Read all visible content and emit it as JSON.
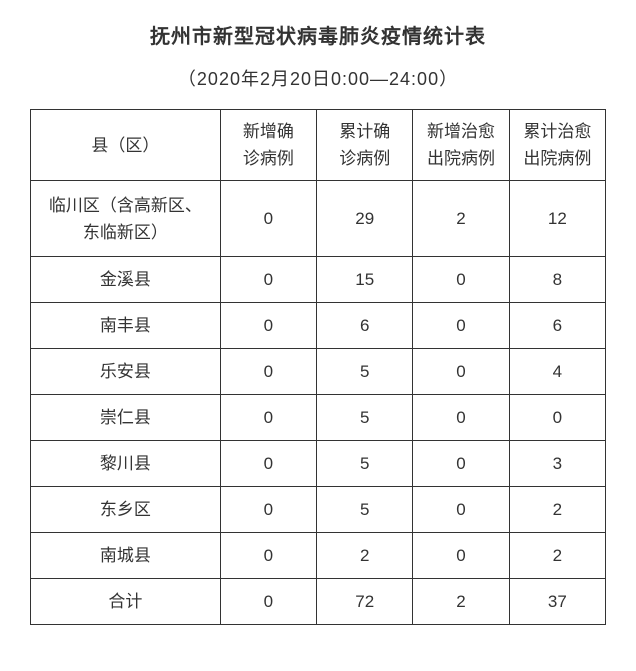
{
  "title": "抚州市新型冠状病毒肺炎疫情统计表",
  "subtitle": "（2020年2月20日0:00—24:00）",
  "columns": {
    "region": "县（区）",
    "new_confirmed_l1": "新增确",
    "new_confirmed_l2": "诊病例",
    "total_confirmed_l1": "累计确",
    "total_confirmed_l2": "诊病例",
    "new_cured_l1": "新增治愈",
    "new_cured_l2": "出院病例",
    "total_cured_l1": "累计治愈",
    "total_cured_l2": "出院病例"
  },
  "rows": [
    {
      "region_l1": "临川区（含高新区、",
      "region_l2": "东临新区）",
      "new_confirmed": "0",
      "total_confirmed": "29",
      "new_cured": "2",
      "total_cured": "12",
      "tall": true
    },
    {
      "region_l1": "金溪县",
      "region_l2": "",
      "new_confirmed": "0",
      "total_confirmed": "15",
      "new_cured": "0",
      "total_cured": "8",
      "tall": false
    },
    {
      "region_l1": "南丰县",
      "region_l2": "",
      "new_confirmed": "0",
      "total_confirmed": "6",
      "new_cured": "0",
      "total_cured": "6",
      "tall": false
    },
    {
      "region_l1": "乐安县",
      "region_l2": "",
      "new_confirmed": "0",
      "total_confirmed": "5",
      "new_cured": "0",
      "total_cured": "4",
      "tall": false
    },
    {
      "region_l1": "崇仁县",
      "region_l2": "",
      "new_confirmed": "0",
      "total_confirmed": "5",
      "new_cured": "0",
      "total_cured": "0",
      "tall": false
    },
    {
      "region_l1": "黎川县",
      "region_l2": "",
      "new_confirmed": "0",
      "total_confirmed": "5",
      "new_cured": "0",
      "total_cured": "3",
      "tall": false
    },
    {
      "region_l1": "东乡区",
      "region_l2": "",
      "new_confirmed": "0",
      "total_confirmed": "5",
      "new_cured": "0",
      "total_cured": "2",
      "tall": false
    },
    {
      "region_l1": "南城县",
      "region_l2": "",
      "new_confirmed": "0",
      "total_confirmed": "2",
      "new_cured": "0",
      "total_cured": "2",
      "tall": false
    },
    {
      "region_l1": "合计",
      "region_l2": "",
      "new_confirmed": "0",
      "total_confirmed": "72",
      "new_cured": "2",
      "total_cured": "37",
      "tall": false
    }
  ]
}
